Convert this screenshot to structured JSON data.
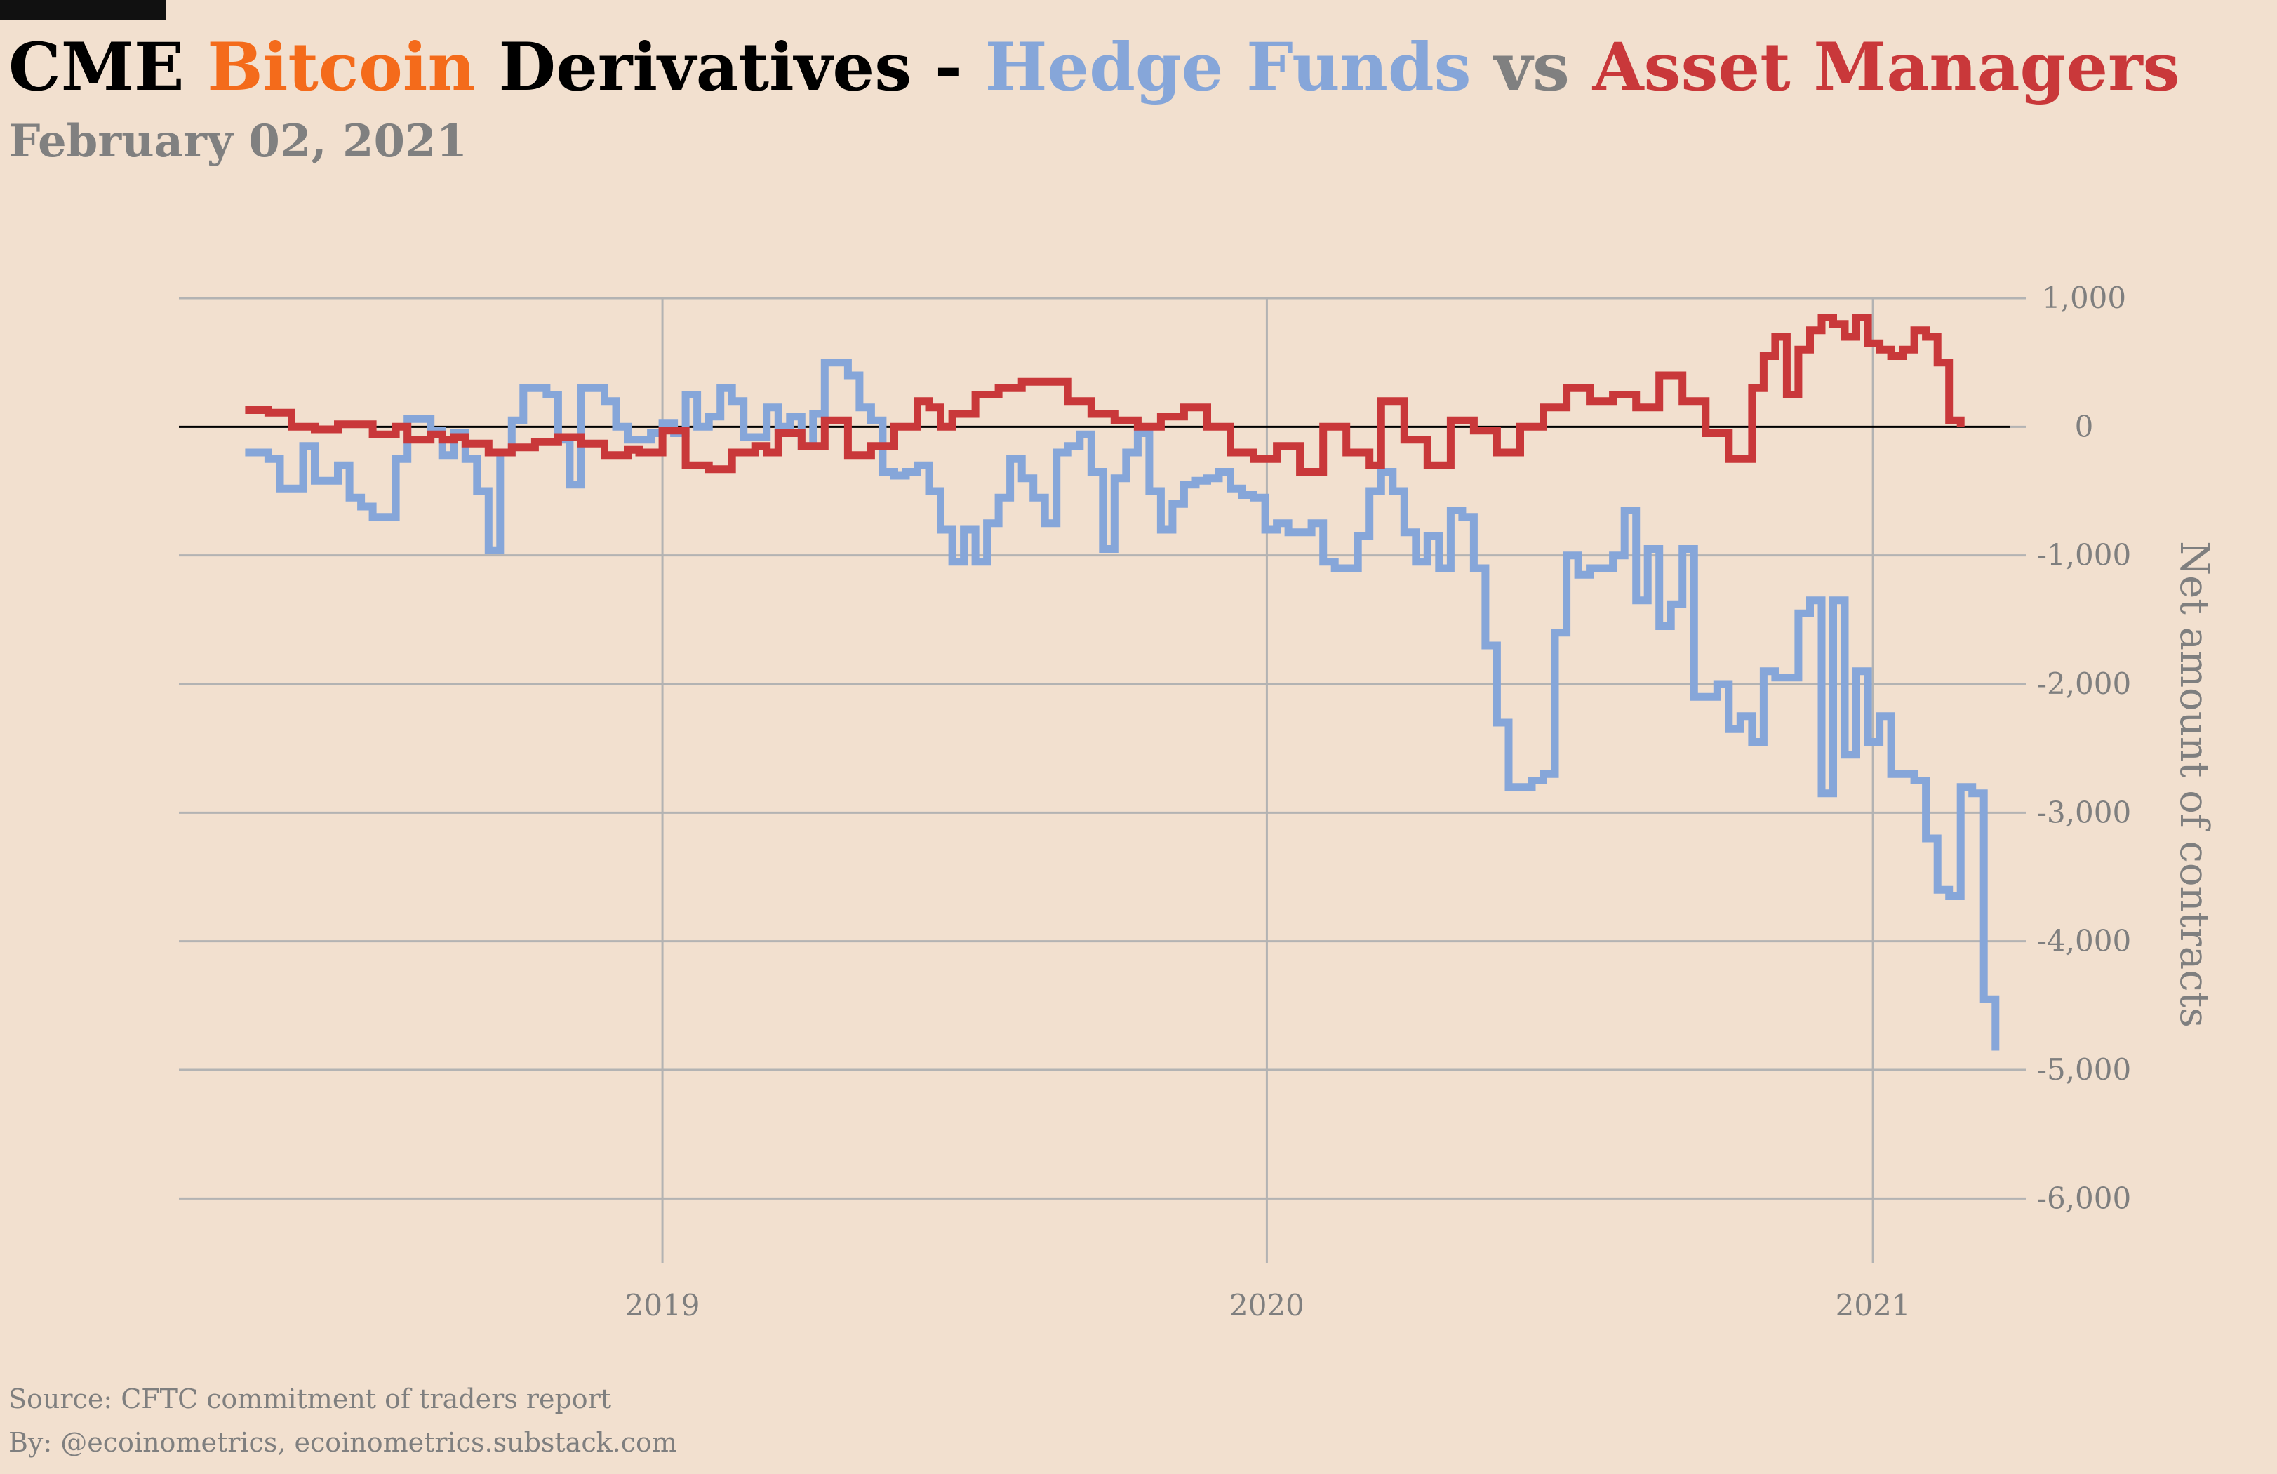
{
  "header": {
    "title_parts": [
      {
        "text": "CME ",
        "color": "#000000"
      },
      {
        "text": "Bitcoin",
        "color": "#f46b1b"
      },
      {
        "text": " Derivatives - ",
        "color": "#000000"
      },
      {
        "text": "Hedge Funds",
        "color": "#86a6d9"
      },
      {
        "text": " vs ",
        "color": "#808080"
      },
      {
        "text": "Asset Managers",
        "color": "#c9383a"
      }
    ],
    "subtitle": "February 02, 2021"
  },
  "footer": {
    "source": "Source: CFTC commitment of traders report",
    "by": "By: @ecoinometrics, ecoinometrics.substack.com"
  },
  "colors": {
    "background": "#f2e0cf",
    "grid": "#b3b3b3",
    "zero_line": "#000000",
    "hedge_funds": "#86a6d9",
    "asset_managers": "#c9383a"
  },
  "chart_data": {
    "type": "line",
    "step": true,
    "title": "CME Bitcoin Derivatives - Hedge Funds vs Asset Managers",
    "ylabel": "Net amount of contracts",
    "xlabel": "",
    "ylim": [
      -6500,
      1000
    ],
    "xlim": [
      "2018-03-15",
      "2021-03-25"
    ],
    "y_ticks": [
      1000,
      0,
      -1000,
      -2000,
      -3000,
      -4000,
      -5000,
      -6000
    ],
    "y_tick_labels": [
      "1,000",
      "0",
      "-1,000",
      "-2,000",
      "-3,000",
      "-4,000",
      "-5,000",
      "-6,000"
    ],
    "x_ticks": [
      "2019-01-01",
      "2020-01-01",
      "2021-01-01"
    ],
    "x_tick_labels": [
      "2019",
      "2020",
      "2021"
    ],
    "grid": true,
    "y_axis_side": "right",
    "series": [
      {
        "name": "Hedge Funds",
        "color": "#86a6d9",
        "points": [
          [
            "2018-04-24",
            -200
          ],
          [
            "2018-05-08",
            -250
          ],
          [
            "2018-05-15",
            -480
          ],
          [
            "2018-05-29",
            -150
          ],
          [
            "2018-06-05",
            -420
          ],
          [
            "2018-06-19",
            -300
          ],
          [
            "2018-06-26",
            -550
          ],
          [
            "2018-07-03",
            -620
          ],
          [
            "2018-07-10",
            -700
          ],
          [
            "2018-07-24",
            -250
          ],
          [
            "2018-07-31",
            60
          ],
          [
            "2018-08-14",
            -30
          ],
          [
            "2018-08-21",
            -220
          ],
          [
            "2018-08-28",
            -50
          ],
          [
            "2018-09-04",
            -250
          ],
          [
            "2018-09-11",
            -500
          ],
          [
            "2018-09-18",
            -960
          ],
          [
            "2018-09-25",
            -200
          ],
          [
            "2018-10-02",
            50
          ],
          [
            "2018-10-09",
            300
          ],
          [
            "2018-10-23",
            250
          ],
          [
            "2018-10-30",
            -100
          ],
          [
            "2018-11-06",
            -450
          ],
          [
            "2018-11-13",
            300
          ],
          [
            "2018-11-27",
            200
          ],
          [
            "2018-12-04",
            0
          ],
          [
            "2018-12-11",
            -100
          ],
          [
            "2018-12-25",
            -50
          ],
          [
            "2019-01-01",
            30
          ],
          [
            "2019-01-08",
            -50
          ],
          [
            "2019-01-15",
            250
          ],
          [
            "2019-01-22",
            0
          ],
          [
            "2019-01-29",
            80
          ],
          [
            "2019-02-05",
            300
          ],
          [
            "2019-02-12",
            200
          ],
          [
            "2019-02-19",
            -80
          ],
          [
            "2019-03-05",
            150
          ],
          [
            "2019-03-12",
            0
          ],
          [
            "2019-03-19",
            80
          ],
          [
            "2019-03-26",
            -150
          ],
          [
            "2019-04-02",
            100
          ],
          [
            "2019-04-09",
            500
          ],
          [
            "2019-04-23",
            400
          ],
          [
            "2019-04-30",
            150
          ],
          [
            "2019-05-07",
            50
          ],
          [
            "2019-05-14",
            -350
          ],
          [
            "2019-05-21",
            -380
          ],
          [
            "2019-05-28",
            -350
          ],
          [
            "2019-06-04",
            -300
          ],
          [
            "2019-06-11",
            -500
          ],
          [
            "2019-06-18",
            -800
          ],
          [
            "2019-06-25",
            -1050
          ],
          [
            "2019-07-02",
            -800
          ],
          [
            "2019-07-09",
            -1050
          ],
          [
            "2019-07-16",
            -750
          ],
          [
            "2019-07-23",
            -550
          ],
          [
            "2019-07-30",
            -250
          ],
          [
            "2019-08-06",
            -400
          ],
          [
            "2019-08-13",
            -550
          ],
          [
            "2019-08-20",
            -750
          ],
          [
            "2019-08-27",
            -200
          ],
          [
            "2019-09-03",
            -150
          ],
          [
            "2019-09-10",
            -60
          ],
          [
            "2019-09-17",
            -350
          ],
          [
            "2019-09-24",
            -950
          ],
          [
            "2019-10-01",
            -400
          ],
          [
            "2019-10-08",
            -200
          ],
          [
            "2019-10-15",
            -50
          ],
          [
            "2019-10-22",
            -500
          ],
          [
            "2019-10-29",
            -800
          ],
          [
            "2019-11-05",
            -600
          ],
          [
            "2019-11-12",
            -450
          ],
          [
            "2019-11-19",
            -420
          ],
          [
            "2019-11-26",
            -400
          ],
          [
            "2019-12-03",
            -350
          ],
          [
            "2019-12-10",
            -480
          ],
          [
            "2019-12-17",
            -530
          ],
          [
            "2019-12-24",
            -550
          ],
          [
            "2019-12-31",
            -800
          ],
          [
            "2020-01-07",
            -750
          ],
          [
            "2020-01-14",
            -820
          ],
          [
            "2020-01-28",
            -750
          ],
          [
            "2020-02-04",
            -1050
          ],
          [
            "2020-02-11",
            -1100
          ],
          [
            "2020-02-25",
            -850
          ],
          [
            "2020-03-03",
            -500
          ],
          [
            "2020-03-10",
            -350
          ],
          [
            "2020-03-17",
            -500
          ],
          [
            "2020-03-24",
            -820
          ],
          [
            "2020-03-31",
            -1050
          ],
          [
            "2020-04-07",
            -850
          ],
          [
            "2020-04-14",
            -1100
          ],
          [
            "2020-04-21",
            -650
          ],
          [
            "2020-04-28",
            -700
          ],
          [
            "2020-05-05",
            -1100
          ],
          [
            "2020-05-12",
            -1700
          ],
          [
            "2020-05-19",
            -2300
          ],
          [
            "2020-05-26",
            -2800
          ],
          [
            "2020-06-09",
            -2750
          ],
          [
            "2020-06-16",
            -2700
          ],
          [
            "2020-06-23",
            -1600
          ],
          [
            "2020-06-30",
            -1000
          ],
          [
            "2020-07-07",
            -1150
          ],
          [
            "2020-07-14",
            -1100
          ],
          [
            "2020-07-28",
            -1000
          ],
          [
            "2020-08-04",
            -650
          ],
          [
            "2020-08-11",
            -1350
          ],
          [
            "2020-08-18",
            -950
          ],
          [
            "2020-08-25",
            -1550
          ],
          [
            "2020-09-01",
            -1380
          ],
          [
            "2020-09-08",
            -950
          ],
          [
            "2020-09-15",
            -2100
          ],
          [
            "2020-09-29",
            -2000
          ],
          [
            "2020-10-06",
            -2350
          ],
          [
            "2020-10-13",
            -2250
          ],
          [
            "2020-10-20",
            -2450
          ],
          [
            "2020-10-27",
            -1900
          ],
          [
            "2020-11-03",
            -1950
          ],
          [
            "2020-11-10",
            -1950
          ],
          [
            "2020-11-17",
            -1450
          ],
          [
            "2020-11-24",
            -1350
          ],
          [
            "2020-12-01",
            -2850
          ],
          [
            "2020-12-08",
            -1350
          ],
          [
            "2020-12-15",
            -2550
          ],
          [
            "2020-12-22",
            -1900
          ],
          [
            "2020-12-29",
            -2450
          ],
          [
            "2021-01-05",
            -2250
          ],
          [
            "2021-01-12",
            -2700
          ],
          [
            "2021-01-26",
            -2750
          ],
          [
            "2021-02-02",
            -3200
          ],
          [
            "2021-02-09",
            -3600
          ],
          [
            "2021-02-16",
            -3650
          ],
          [
            "2021-02-23",
            -2800
          ],
          [
            "2021-03-02",
            -2850
          ],
          [
            "2021-03-09",
            -4450
          ],
          [
            "2021-03-16",
            -4850
          ]
        ]
      },
      {
        "name": "Asset Managers",
        "color": "#c9383a",
        "points": [
          [
            "2018-04-24",
            130
          ],
          [
            "2018-05-08",
            110
          ],
          [
            "2018-05-22",
            0
          ],
          [
            "2018-06-05",
            -20
          ],
          [
            "2018-06-19",
            20
          ],
          [
            "2018-07-10",
            -60
          ],
          [
            "2018-07-24",
            0
          ],
          [
            "2018-07-31",
            -100
          ],
          [
            "2018-08-14",
            -60
          ],
          [
            "2018-08-21",
            -100
          ],
          [
            "2018-08-28",
            -80
          ],
          [
            "2018-09-04",
            -130
          ],
          [
            "2018-09-18",
            -200
          ],
          [
            "2018-10-02",
            -160
          ],
          [
            "2018-10-16",
            -120
          ],
          [
            "2018-10-30",
            -80
          ],
          [
            "2018-11-13",
            -130
          ],
          [
            "2018-11-27",
            -220
          ],
          [
            "2018-12-11",
            -180
          ],
          [
            "2018-12-18",
            -200
          ],
          [
            "2019-01-01",
            -30
          ],
          [
            "2019-01-15",
            -300
          ],
          [
            "2019-01-29",
            -330
          ],
          [
            "2019-02-12",
            -200
          ],
          [
            "2019-02-26",
            -150
          ],
          [
            "2019-03-05",
            -200
          ],
          [
            "2019-03-12",
            -50
          ],
          [
            "2019-03-26",
            -150
          ],
          [
            "2019-04-09",
            50
          ],
          [
            "2019-04-23",
            -220
          ],
          [
            "2019-05-07",
            -150
          ],
          [
            "2019-05-21",
            0
          ],
          [
            "2019-06-04",
            200
          ],
          [
            "2019-06-11",
            150
          ],
          [
            "2019-06-18",
            0
          ],
          [
            "2019-06-25",
            100
          ],
          [
            "2019-07-09",
            250
          ],
          [
            "2019-07-23",
            300
          ],
          [
            "2019-08-06",
            350
          ],
          [
            "2019-08-20",
            350
          ],
          [
            "2019-09-03",
            200
          ],
          [
            "2019-09-17",
            100
          ],
          [
            "2019-10-01",
            50
          ],
          [
            "2019-10-15",
            0
          ],
          [
            "2019-10-29",
            80
          ],
          [
            "2019-11-12",
            150
          ],
          [
            "2019-11-26",
            0
          ],
          [
            "2019-12-10",
            -200
          ],
          [
            "2019-12-24",
            -250
          ],
          [
            "2020-01-07",
            -150
          ],
          [
            "2020-01-21",
            -350
          ],
          [
            "2020-02-04",
            0
          ],
          [
            "2020-02-18",
            -200
          ],
          [
            "2020-03-03",
            -300
          ],
          [
            "2020-03-10",
            200
          ],
          [
            "2020-03-24",
            -100
          ],
          [
            "2020-04-07",
            -300
          ],
          [
            "2020-04-21",
            50
          ],
          [
            "2020-05-05",
            -30
          ],
          [
            "2020-05-19",
            -200
          ],
          [
            "2020-06-02",
            0
          ],
          [
            "2020-06-16",
            150
          ],
          [
            "2020-06-30",
            300
          ],
          [
            "2020-07-14",
            200
          ],
          [
            "2020-07-28",
            250
          ],
          [
            "2020-08-11",
            150
          ],
          [
            "2020-08-25",
            400
          ],
          [
            "2020-09-08",
            200
          ],
          [
            "2020-09-22",
            -50
          ],
          [
            "2020-10-06",
            -250
          ],
          [
            "2020-10-20",
            300
          ],
          [
            "2020-10-27",
            550
          ],
          [
            "2020-11-03",
            700
          ],
          [
            "2020-11-10",
            250
          ],
          [
            "2020-11-17",
            600
          ],
          [
            "2020-11-24",
            750
          ],
          [
            "2020-12-01",
            850
          ],
          [
            "2020-12-08",
            800
          ],
          [
            "2020-12-15",
            700
          ],
          [
            "2020-12-22",
            850
          ],
          [
            "2020-12-29",
            650
          ],
          [
            "2021-01-05",
            600
          ],
          [
            "2021-01-12",
            550
          ],
          [
            "2021-01-19",
            600
          ],
          [
            "2021-01-26",
            750
          ],
          [
            "2021-02-02",
            700
          ],
          [
            "2021-02-09",
            500
          ],
          [
            "2021-02-16",
            50
          ],
          [
            "2021-02-23",
            0
          ]
        ]
      }
    ]
  }
}
